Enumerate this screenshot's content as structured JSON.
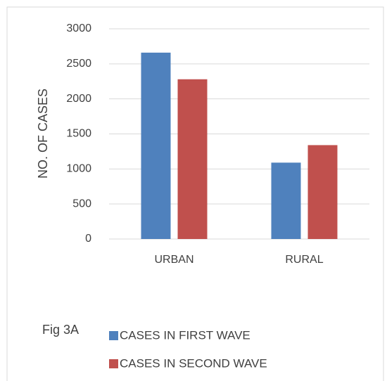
{
  "chart_data": {
    "type": "bar",
    "y_label": "NO. OF CASES",
    "annotation": "Fig 3A",
    "categories": [
      "URBAN",
      "RURAL"
    ],
    "series": [
      {
        "name": "CASES IN FIRST WAVE",
        "color": "#4f81bd",
        "values": [
          2660,
          1090
        ]
      },
      {
        "name": "CASES IN SECOND WAVE",
        "color": "#c0504d",
        "values": [
          2280,
          1340
        ]
      }
    ],
    "ylim": [
      0,
      3000
    ],
    "yticks": [
      0,
      500,
      1000,
      1500,
      2000,
      2500,
      3000
    ],
    "grid": true,
    "legend": "bottom"
  }
}
